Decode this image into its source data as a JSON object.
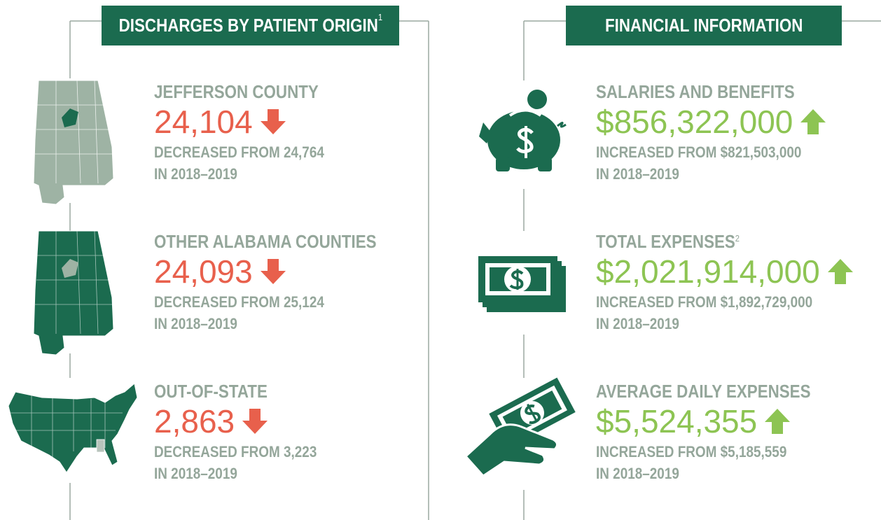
{
  "left": {
    "title": "DISCHARGES BY PATIENT ORIGIN",
    "title_note": "1",
    "items": [
      {
        "label": "JEFFERSON COUNTY",
        "value": "24,104",
        "change": "DECREASED FROM 24,764",
        "period": "IN 2018–2019"
      },
      {
        "label": "OTHER ALABAMA COUNTIES",
        "value": "24,093",
        "change": "DECREASED FROM 25,124",
        "period": "IN 2018–2019"
      },
      {
        "label": "OUT-OF-STATE",
        "value": "2,863",
        "change": "DECREASED FROM 3,223",
        "period": "IN 2018–2019"
      }
    ]
  },
  "right": {
    "title": "FINANCIAL INFORMATION",
    "items": [
      {
        "label": "SALARIES AND BENEFITS",
        "value": "$856,322,000",
        "change": "INCREASED FROM $821,503,000",
        "period": "IN 2018–2019"
      },
      {
        "label": "TOTAL EXPENSES",
        "label_note": "2",
        "value": "$2,021,914,000",
        "change": "INCREASED FROM $1,892,729,000",
        "period": "IN 2018–2019"
      },
      {
        "label": "AVERAGE DAILY EXPENSES",
        "value": "$5,524,355",
        "change": "INCREASED FROM $5,185,559",
        "period": "IN 2018–2019"
      }
    ]
  }
}
